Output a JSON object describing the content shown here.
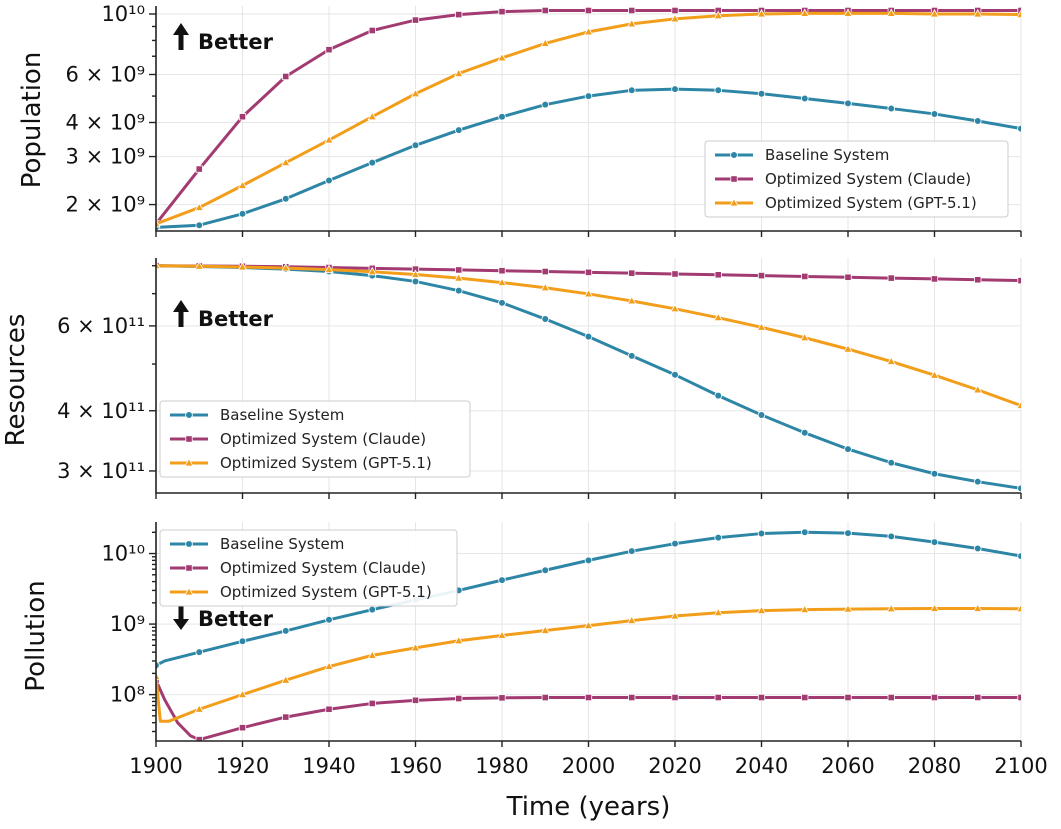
{
  "chart_data": [
    {
      "type": "line",
      "ylabel": "Population",
      "yscale": "log",
      "ylim": [
        1600000000.0,
        10700000000.0
      ],
      "yticks_major": [
        {
          "value": 2000000000.0,
          "label": "2 × 10⁹"
        },
        {
          "value": 3000000000.0,
          "label": "3 × 10⁹"
        },
        {
          "value": 4000000000.0,
          "label": "4 × 10⁹"
        },
        {
          "value": 6000000000.0,
          "label": "6 × 10⁹"
        },
        {
          "value": 10000000000.0,
          "label": "10¹⁰"
        }
      ],
      "yticks_minor": [
        5000000000.0,
        7000000000.0,
        8000000000.0,
        9000000000.0
      ],
      "annotation": {
        "text": "Better",
        "arrow": "up"
      },
      "legend_loc": "lower-right",
      "x": [
        1900,
        1910,
        1920,
        1930,
        1940,
        1950,
        1960,
        1970,
        1980,
        1990,
        2000,
        2010,
        2020,
        2030,
        2040,
        2050,
        2060,
        2070,
        2080,
        2090,
        2100
      ],
      "series": [
        {
          "name": "Baseline System",
          "color": "#2e86a6",
          "marker": "circle",
          "values": [
            1650000000.0,
            1680000000.0,
            1850000000.0,
            2100000000.0,
            2450000000.0,
            2850000000.0,
            3300000000.0,
            3750000000.0,
            4200000000.0,
            4650000000.0,
            5000000000.0,
            5250000000.0,
            5300000000.0,
            5250000000.0,
            5100000000.0,
            4900000000.0,
            4700000000.0,
            4500000000.0,
            4300000000.0,
            4050000000.0,
            3800000000.0
          ]
        },
        {
          "name": "Optimized System (Claude)",
          "color": "#a23b72",
          "marker": "square",
          "values": [
            1700000000.0,
            2700000000.0,
            4200000000.0,
            5900000000.0,
            7400000000.0,
            8700000000.0,
            9500000000.0,
            9950000000.0,
            10200000000.0,
            10300000000.0,
            10300000000.0,
            10300000000.0,
            10300000000.0,
            10300000000.0,
            10300000000.0,
            10300000000.0,
            10300000000.0,
            10300000000.0,
            10300000000.0,
            10300000000.0,
            10300000000.0
          ]
        },
        {
          "name": "Optimized System (GPT-5.1)",
          "color": "#f29e1a",
          "marker": "triangle",
          "values": [
            1700000000.0,
            1950000000.0,
            2350000000.0,
            2850000000.0,
            3450000000.0,
            4200000000.0,
            5100000000.0,
            6050000000.0,
            6900000000.0,
            7800000000.0,
            8600000000.0,
            9200000000.0,
            9600000000.0,
            9850000000.0,
            10000000000.0,
            10050000000.0,
            10050000000.0,
            10050000000.0,
            10000000000.0,
            10000000000.0,
            9950000000.0
          ]
        }
      ]
    },
    {
      "type": "line",
      "ylabel": "Resources",
      "yscale": "log",
      "ylim": [
        270000000000.0,
        830000000000.0
      ],
      "yticks_major": [
        {
          "value": 300000000000.0,
          "label": "3 × 10¹¹"
        },
        {
          "value": 400000000000.0,
          "label": "4 × 10¹¹"
        },
        {
          "value": 600000000000.0,
          "label": "6 × 10¹¹"
        }
      ],
      "yticks_minor": [
        500000000000.0,
        700000000000.0,
        800000000000.0
      ],
      "annotation": {
        "text": "Better",
        "arrow": "up"
      },
      "legend_loc": "lower-left",
      "x": [
        1900,
        1910,
        1920,
        1930,
        1940,
        1950,
        1960,
        1970,
        1980,
        1990,
        2000,
        2010,
        2020,
        2030,
        2040,
        2050,
        2060,
        2070,
        2080,
        2090,
        2100
      ],
      "series": [
        {
          "name": "Baseline System",
          "color": "#2e86a6",
          "marker": "circle",
          "values": [
            800000000000.0,
            797000000000.0,
            793000000000.0,
            787000000000.0,
            778000000000.0,
            763000000000.0,
            742000000000.0,
            710000000000.0,
            670000000000.0,
            620000000000.0,
            570000000000.0,
            520000000000.0,
            475000000000.0,
            430000000000.0,
            392000000000.0,
            360000000000.0,
            333000000000.0,
            312000000000.0,
            296000000000.0,
            285000000000.0,
            276000000000.0
          ]
        },
        {
          "name": "Optimized System (Claude)",
          "color": "#a23b72",
          "marker": "square",
          "values": [
            800000000000.0,
            799000000000.0,
            798000000000.0,
            796000000000.0,
            793000000000.0,
            790000000000.0,
            787000000000.0,
            784000000000.0,
            781000000000.0,
            778000000000.0,
            775000000000.0,
            772000000000.0,
            769000000000.0,
            766000000000.0,
            763000000000.0,
            760000000000.0,
            757000000000.0,
            754000000000.0,
            751000000000.0,
            748000000000.0,
            745000000000.0
          ]
        },
        {
          "name": "Optimized System (GPT-5.1)",
          "color": "#f29e1a",
          "marker": "triangle",
          "values": [
            800000000000.0,
            798000000000.0,
            795000000000.0,
            791000000000.0,
            785000000000.0,
            777000000000.0,
            767000000000.0,
            754000000000.0,
            738000000000.0,
            720000000000.0,
            699000000000.0,
            676000000000.0,
            651000000000.0,
            624000000000.0,
            596000000000.0,
            567000000000.0,
            537000000000.0,
            506000000000.0,
            474000000000.0,
            442000000000.0,
            410000000000.0
          ]
        }
      ]
    },
    {
      "type": "line",
      "ylabel": "Pollution",
      "yscale": "log",
      "ylim": [
        22000000.0,
        28000000000.0
      ],
      "yticks_major": [
        {
          "value": 100000000.0,
          "label": "10⁸"
        },
        {
          "value": 1000000000.0,
          "label": "10⁹"
        },
        {
          "value": 10000000000.0,
          "label": "10¹⁰"
        }
      ],
      "yticks_minor": [
        30000000.0,
        40000000.0,
        50000000.0,
        60000000.0,
        70000000.0,
        80000000.0,
        90000000.0,
        200000000.0,
        300000000.0,
        400000000.0,
        500000000.0,
        600000000.0,
        700000000.0,
        800000000.0,
        900000000.0,
        2000000000.0,
        3000000000.0,
        4000000000.0,
        5000000000.0,
        6000000000.0,
        7000000000.0,
        8000000000.0,
        9000000000.0,
        20000000000.0
      ],
      "annotation": {
        "text": "Better",
        "arrow": "down"
      },
      "legend_loc": "upper-left",
      "xlabel": "Time (years)",
      "xticks": [
        1900,
        1920,
        1940,
        1960,
        1980,
        2000,
        2020,
        2040,
        2060,
        2080,
        2100
      ],
      "x": [
        1900,
        1910,
        1920,
        1930,
        1940,
        1950,
        1960,
        1970,
        1980,
        1990,
        2000,
        2010,
        2020,
        2030,
        2040,
        2050,
        2060,
        2070,
        2080,
        2090,
        2100
      ],
      "series": [
        {
          "name": "Baseline System",
          "color": "#2e86a6",
          "marker": "circle",
          "x": [
            1900,
            1902,
            1910,
            1920,
            1930,
            1940,
            1950,
            1960,
            1970,
            1980,
            1990,
            2000,
            2010,
            2020,
            2030,
            2040,
            2050,
            2060,
            2070,
            2080,
            2090,
            2100
          ],
          "values": [
            260000000.0,
            300000000.0,
            400000000.0,
            570000000.0,
            800000000.0,
            1150000000.0,
            1600000000.0,
            2200000000.0,
            3000000000.0,
            4200000000.0,
            5800000000.0,
            8000000000.0,
            10800000000.0,
            13800000000.0,
            16800000000.0,
            19200000000.0,
            20000000000.0,
            19500000000.0,
            17500000000.0,
            14500000000.0,
            11800000000.0,
            9200000000.0
          ]
        },
        {
          "name": "Optimized System (Claude)",
          "color": "#a23b72",
          "marker": "square",
          "x": [
            1900,
            1902,
            1905,
            1908,
            1910,
            1920,
            1930,
            1940,
            1950,
            1960,
            1970,
            1980,
            1990,
            2000,
            2010,
            2020,
            2030,
            2040,
            2050,
            2060,
            2070,
            2080,
            2090,
            2100
          ],
          "values": [
            160000000.0,
            85000000.0,
            40000000.0,
            26000000.0,
            23000000.0,
            34000000.0,
            48000000.0,
            62000000.0,
            75000000.0,
            83000000.0,
            88000000.0,
            90000000.0,
            91000000.0,
            91000000.0,
            91000000.0,
            91000000.0,
            91000000.0,
            91000000.0,
            91000000.0,
            91000000.0,
            91000000.0,
            91000000.0,
            91000000.0,
            91000000.0
          ]
        },
        {
          "name": "Optimized System (GPT-5.1)",
          "color": "#f29e1a",
          "marker": "triangle",
          "x": [
            1900,
            1901,
            1903,
            1910,
            1920,
            1930,
            1940,
            1950,
            1960,
            1970,
            1980,
            1990,
            2000,
            2010,
            2020,
            2030,
            2040,
            2050,
            2060,
            2070,
            2080,
            2090,
            2100
          ],
          "values": [
            180000000.0,
            42000000.0,
            42000000.0,
            62000000.0,
            100000000.0,
            160000000.0,
            250000000.0,
            360000000.0,
            460000000.0,
            580000000.0,
            690000000.0,
            810000000.0,
            950000000.0,
            1120000000.0,
            1300000000.0,
            1450000000.0,
            1550000000.0,
            1600000000.0,
            1630000000.0,
            1650000000.0,
            1660000000.0,
            1660000000.0,
            1650000000.0
          ]
        }
      ]
    }
  ]
}
